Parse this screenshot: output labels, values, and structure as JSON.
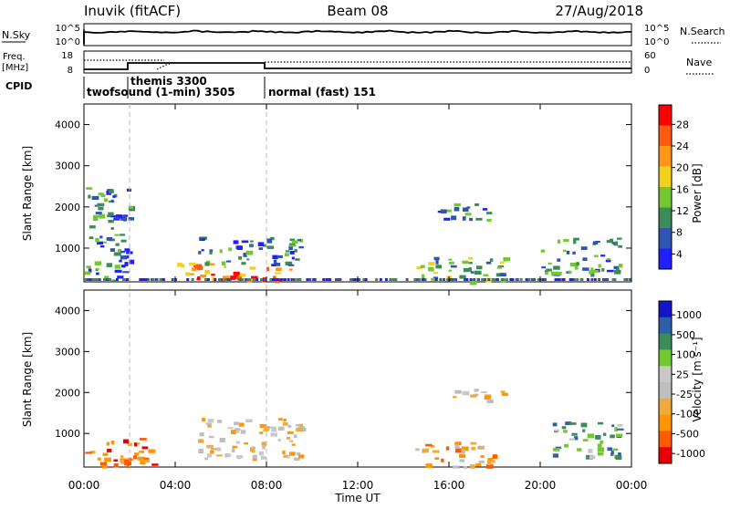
{
  "header": {
    "station": "Inuvik (fitACF)",
    "beam": "Beam 08",
    "date": "27/Aug/2018"
  },
  "top_panels": {
    "nsky_label": "N.Sky",
    "nsky_ticks": [
      "10^5",
      "10^0"
    ],
    "nsearch_label": "N.Search",
    "nsearch_ticks": [
      "10^5",
      "10^0"
    ],
    "freq_label_line1": "Freq.",
    "freq_label_line2": "[MHz]",
    "freq_ticks": [
      "18",
      "8"
    ],
    "nave_label": "Nave",
    "nave_ticks": [
      "60",
      "0"
    ],
    "cpid_label": "CPID",
    "cpid_entries": [
      {
        "label": "twofsound (1-min) 3505",
        "start_hour": 0.0
      },
      {
        "label": "themis 3300",
        "start_hour": 2.0
      },
      {
        "label": "normal (fast) 151",
        "start_hour": 8.0
      }
    ]
  },
  "colors": {
    "power_scale": [
      "#1f1fff",
      "#2f55b0",
      "#3c8c5a",
      "#73c832",
      "#f0d21e",
      "#ff9619",
      "#ff5a0f",
      "#ff0000"
    ],
    "velocity_scale": [
      "#e60000",
      "#ff5a00",
      "#ff9600",
      "#f0aa3c",
      "#bebebe",
      "#c8c8c8",
      "#73c832",
      "#3c8c5a",
      "#2d5faa",
      "#1414c8"
    ],
    "cpid_divider": "#999999"
  },
  "chart_data": [
    {
      "type": "heatmap",
      "panel": "power",
      "ylabel": "Slant Range [km]",
      "xlabel": "",
      "x_ticks": [
        "00:00",
        "04:00",
        "08:00",
        "12:00",
        "16:00",
        "20:00",
        "00:00"
      ],
      "x_range_hours": [
        0,
        24
      ],
      "ylim": [
        180,
        4500
      ],
      "y_ticks": [
        1000,
        2000,
        3000,
        4000
      ],
      "colorbar_label": "Power [dB]",
      "colorbar_ticks": [
        "28",
        "24",
        "20",
        "16",
        "12",
        "8",
        "4"
      ],
      "colorbar_range": [
        0,
        30
      ],
      "echo_regions": [
        {
          "t_start": 0.0,
          "t_end": 2.0,
          "r_start": 200,
          "r_end": 2500,
          "level": "4-16"
        },
        {
          "t_start": 4.0,
          "t_end": 6.0,
          "r_start": 200,
          "r_end": 700,
          "level": "20-30"
        },
        {
          "t_start": 6.0,
          "t_end": 9.0,
          "r_start": 200,
          "r_end": 600,
          "level": "24-30"
        },
        {
          "t_start": 5.0,
          "t_end": 9.5,
          "r_start": 600,
          "r_end": 1300,
          "level": "8-20"
        },
        {
          "t_start": 14.5,
          "t_end": 18.5,
          "r_start": 200,
          "r_end": 800,
          "level": "12-24"
        },
        {
          "t_start": 15.5,
          "t_end": 18.0,
          "r_start": 1700,
          "r_end": 2100,
          "level": "4-12"
        },
        {
          "t_start": 20.0,
          "t_end": 23.5,
          "r_start": 400,
          "r_end": 1300,
          "level": "8-20"
        }
      ]
    },
    {
      "type": "heatmap",
      "panel": "velocity",
      "ylabel": "Slant Range [km]",
      "xlabel": "Time UT",
      "x_ticks": [
        "00:00",
        "04:00",
        "08:00",
        "12:00",
        "16:00",
        "20:00",
        "00:00"
      ],
      "x_range_hours": [
        0,
        24
      ],
      "ylim": [
        180,
        4500
      ],
      "y_ticks": [
        1000,
        2000,
        3000,
        4000
      ],
      "colorbar_label": "Velocity [m s⁻¹]",
      "colorbar_ticks": [
        "1000",
        "500",
        "100",
        "25",
        "-25",
        "-100",
        "-500",
        "-1000"
      ],
      "echo_regions": [
        {
          "t_start": 0.0,
          "t_end": 3.0,
          "r_start": 200,
          "r_end": 900,
          "level": "-100 to -500"
        },
        {
          "t_start": 5.0,
          "t_end": 9.5,
          "r_start": 400,
          "r_end": 1400,
          "level": "-25 to 25"
        },
        {
          "t_start": 14.5,
          "t_end": 18.0,
          "r_start": 200,
          "r_end": 800,
          "level": "-25 to -100"
        },
        {
          "t_start": 16.0,
          "t_end": 18.5,
          "r_start": 1800,
          "r_end": 2100,
          "level": "-25 to 25"
        },
        {
          "t_start": 20.5,
          "t_end": 23.5,
          "r_start": 400,
          "r_end": 1300,
          "level": "100 to 1000"
        }
      ]
    }
  ]
}
